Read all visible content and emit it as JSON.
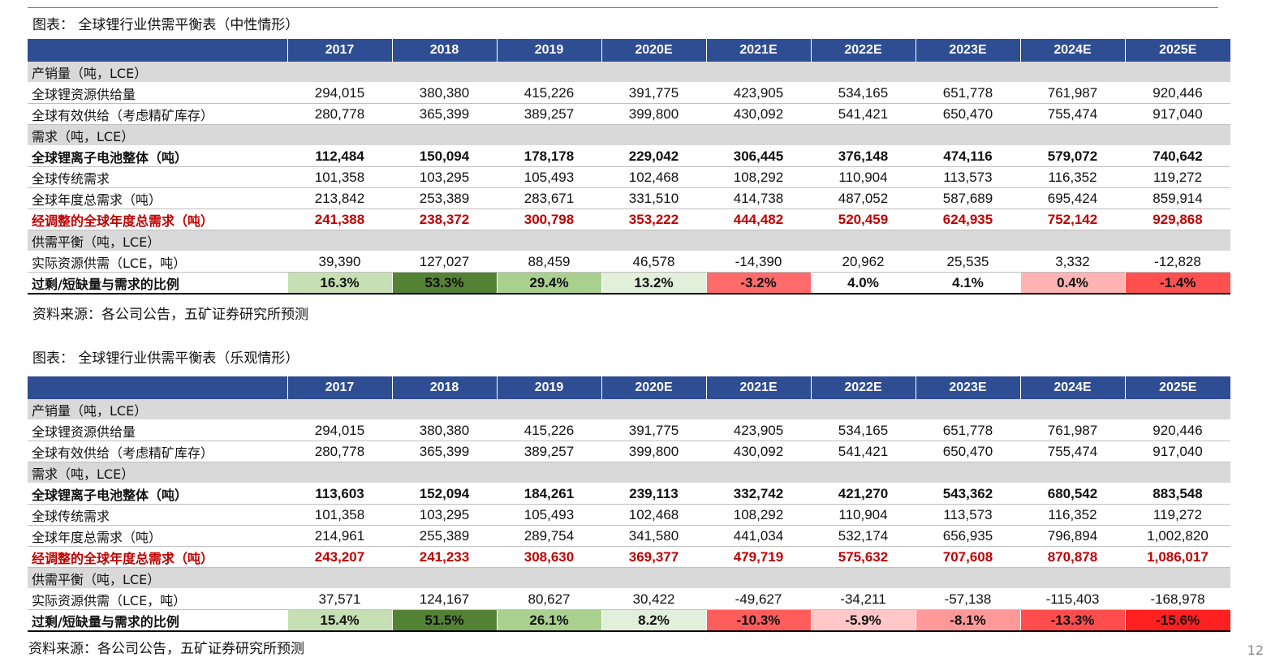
{
  "page_number": "12",
  "colors": {
    "header_bg": "#2e4d92",
    "section_bg": "#d9d9d9",
    "accent_red": "#c00000",
    "rule": "#c0504d"
  },
  "tables": [
    {
      "caption": "图表： 全球锂行业供需平衡表（中性情形）",
      "years": [
        "2017",
        "2018",
        "2019",
        "2020E",
        "2021E",
        "2022E",
        "2023E",
        "2024E",
        "2025E"
      ],
      "sections": [
        {
          "title": "产销量（吨，LCE）",
          "rows": [
            {
              "label": "全球锂资源供给量",
              "style": "normal",
              "values": [
                "294,015",
                "380,380",
                "415,226",
                "391,775",
                "423,905",
                "534,165",
                "651,778",
                "761,987",
                "920,446"
              ]
            },
            {
              "label": "全球有效供给（考虑精矿库存）",
              "style": "normal",
              "values": [
                "280,778",
                "365,399",
                "389,257",
                "399,800",
                "430,092",
                "541,421",
                "650,470",
                "755,474",
                "917,040"
              ]
            }
          ]
        },
        {
          "title": "需求（吨，LCE）",
          "rows": [
            {
              "label": "全球锂离子电池整体（吨）",
              "style": "bold",
              "values": [
                "112,484",
                "150,094",
                "178,178",
                "229,042",
                "306,445",
                "376,148",
                "474,116",
                "579,072",
                "740,642"
              ]
            },
            {
              "label": "全球传统需求",
              "style": "normal",
              "values": [
                "101,358",
                "103,295",
                "105,493",
                "102,468",
                "108,292",
                "110,904",
                "113,573",
                "116,352",
                "119,272"
              ]
            },
            {
              "label": "全球年度总需求（吨）",
              "style": "normal",
              "values": [
                "213,842",
                "253,389",
                "283,671",
                "331,510",
                "414,738",
                "487,052",
                "587,689",
                "695,424",
                "859,914"
              ]
            },
            {
              "label": "经调整的全球年度总需求（吨）",
              "style": "red",
              "values": [
                "241,388",
                "238,372",
                "300,798",
                "353,222",
                "444,482",
                "520,459",
                "624,935",
                "752,142",
                "929,868"
              ]
            }
          ]
        },
        {
          "title": "供需平衡（吨，LCE）",
          "rows": [
            {
              "label": "实际资源供需（LCE，吨）",
              "style": "normal",
              "values": [
                "39,390",
                "127,027",
                "88,459",
                "46,578",
                "-14,390",
                "20,962",
                "25,535",
                "3,332",
                "-12,828"
              ]
            },
            {
              "label": "过剩/短缺量与需求的比例",
              "style": "ratio",
              "values": [
                "16.3%",
                "53.3%",
                "29.4%",
                "13.2%",
                "-3.2%",
                "4.0%",
                "4.1%",
                "0.4%",
                "-1.4%"
              ],
              "cell_colors": [
                "#c6e0b4",
                "#548235",
                "#a9d08e",
                "#e2efda",
                "#ff6b6b",
                "#ffffff",
                "#ffffff",
                "#ffb3b3",
                "#ff5050"
              ]
            }
          ]
        }
      ],
      "source": "资料来源：各公司公告，五矿证券研究所预测"
    },
    {
      "caption": "图表： 全球锂行业供需平衡表（乐观情形）",
      "years": [
        "2017",
        "2018",
        "2019",
        "2020E",
        "2021E",
        "2022E",
        "2023E",
        "2024E",
        "2025E"
      ],
      "sections": [
        {
          "title": "产销量（吨，LCE）",
          "rows": [
            {
              "label": "全球锂资源供给量",
              "style": "normal",
              "values": [
                "294,015",
                "380,380",
                "415,226",
                "391,775",
                "423,905",
                "534,165",
                "651,778",
                "761,987",
                "920,446"
              ]
            },
            {
              "label": "全球有效供给（考虑精矿库存）",
              "style": "normal",
              "values": [
                "280,778",
                "365,399",
                "389,257",
                "399,800",
                "430,092",
                "541,421",
                "650,470",
                "755,474",
                "917,040"
              ]
            }
          ]
        },
        {
          "title": "需求（吨，LCE）",
          "rows": [
            {
              "label": "全球锂离子电池整体（吨）",
              "style": "bold",
              "values": [
                "113,603",
                "152,094",
                "184,261",
                "239,113",
                "332,742",
                "421,270",
                "543,362",
                "680,542",
                "883,548"
              ]
            },
            {
              "label": "全球传统需求",
              "style": "normal",
              "values": [
                "101,358",
                "103,295",
                "105,493",
                "102,468",
                "108,292",
                "110,904",
                "113,573",
                "116,352",
                "119,272"
              ]
            },
            {
              "label": "全球年度总需求（吨）",
              "style": "normal",
              "values": [
                "214,961",
                "255,389",
                "289,754",
                "341,580",
                "441,034",
                "532,174",
                "656,935",
                "796,894",
                "1,002,820"
              ]
            },
            {
              "label": "经调整的全球年度总需求（吨）",
              "style": "red",
              "values": [
                "243,207",
                "241,233",
                "308,630",
                "369,377",
                "479,719",
                "575,632",
                "707,608",
                "870,878",
                "1,086,017"
              ]
            }
          ]
        },
        {
          "title": "供需平衡（吨，LCE）",
          "rows": [
            {
              "label": "实际资源供需（LCE，吨）",
              "style": "normal",
              "values": [
                "37,571",
                "124,167",
                "80,627",
                "30,422",
                "-49,627",
                "-34,211",
                "-57,138",
                "-115,403",
                "-168,978"
              ]
            },
            {
              "label": "过剩/短缺量与需求的比例",
              "style": "ratio",
              "values": [
                "15.4%",
                "51.5%",
                "26.1%",
                "8.2%",
                "-10.3%",
                "-5.9%",
                "-8.1%",
                "-13.3%",
                "-15.6%"
              ],
              "cell_colors": [
                "#c6e0b4",
                "#548235",
                "#a9d08e",
                "#e2efda",
                "#ff5c5c",
                "#ffc7c7",
                "#ff9999",
                "#ff4d4d",
                "#ff2020"
              ]
            }
          ]
        }
      ],
      "source": "资料来源：各公司公告，五矿证券研究所预测"
    }
  ]
}
